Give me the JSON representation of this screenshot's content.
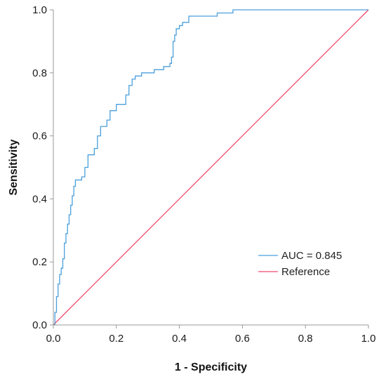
{
  "chart_data": {
    "type": "line",
    "xlabel": "1 - Specificity",
    "ylabel": "Sensitivity",
    "xlim": [
      0,
      1
    ],
    "ylim": [
      0,
      1
    ],
    "x_ticks": [
      "0.0",
      "0.2",
      "0.4",
      "0.6",
      "0.8",
      "1.0"
    ],
    "y_ticks": [
      "0.0",
      "0.2",
      "0.4",
      "0.6",
      "0.8",
      "1.0"
    ],
    "grid": false,
    "legend_position": "bottom-right",
    "series": [
      {
        "name": "AUC = 0.845",
        "color": "#4a9fdc",
        "step": true,
        "x": [
          0,
          0.005,
          0.01,
          0.015,
          0.02,
          0.025,
          0.03,
          0.035,
          0.04,
          0.045,
          0.05,
          0.055,
          0.06,
          0.065,
          0.07,
          0.08,
          0.09,
          0.1,
          0.11,
          0.12,
          0.13,
          0.14,
          0.15,
          0.16,
          0.17,
          0.18,
          0.2,
          0.22,
          0.23,
          0.24,
          0.25,
          0.26,
          0.28,
          0.32,
          0.35,
          0.37,
          0.375,
          0.38,
          0.385,
          0.39,
          0.4,
          0.41,
          0.43,
          0.5,
          0.52,
          0.56,
          0.57,
          1.0
        ],
        "y": [
          0,
          0.04,
          0.09,
          0.13,
          0.16,
          0.18,
          0.21,
          0.26,
          0.29,
          0.32,
          0.35,
          0.38,
          0.41,
          0.44,
          0.46,
          0.46,
          0.47,
          0.5,
          0.54,
          0.54,
          0.56,
          0.6,
          0.63,
          0.63,
          0.65,
          0.68,
          0.7,
          0.7,
          0.73,
          0.76,
          0.78,
          0.79,
          0.8,
          0.81,
          0.82,
          0.83,
          0.85,
          0.9,
          0.92,
          0.94,
          0.95,
          0.96,
          0.98,
          0.98,
          0.99,
          0.99,
          1.0,
          1.0
        ]
      },
      {
        "name": "Reference",
        "color": "#f0486a",
        "step": false,
        "x": [
          0,
          1
        ],
        "y": [
          0,
          1
        ]
      }
    ]
  }
}
